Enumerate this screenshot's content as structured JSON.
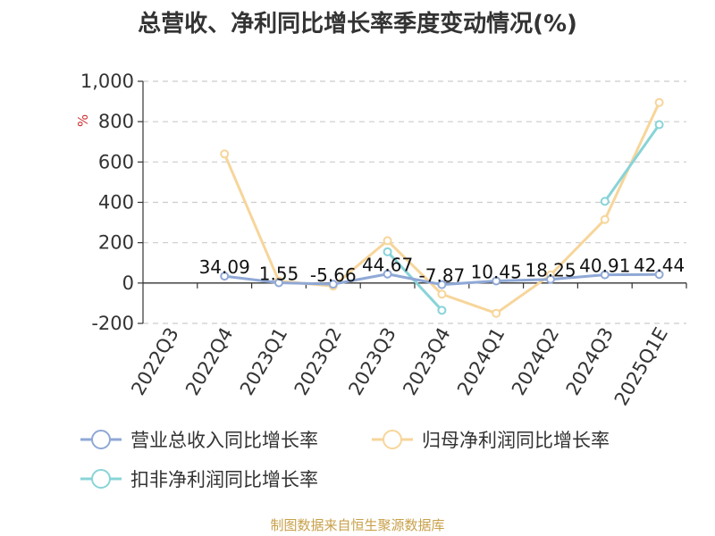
{
  "title": "总营收、净利同比增长率季度变动情况(%)",
  "footer": "制图数据来自恒生聚源数据库",
  "chart_data": {
    "type": "line",
    "title": "总营收、净利同比增长率季度变动情况(%)",
    "ylabel": "%",
    "ylim": [
      -200,
      1000
    ],
    "yticks": [
      -200,
      0,
      200,
      400,
      600,
      800,
      1000
    ],
    "ytick_labels": [
      "-200",
      "0",
      "200",
      "400",
      "600",
      "800",
      "1,000"
    ],
    "grid": true,
    "legend_position": "bottom",
    "categories": [
      "2022Q3",
      "2022Q4",
      "2023Q1",
      "2023Q2",
      "2023Q3",
      "2023Q4",
      "2024Q1",
      "2024Q2",
      "2024Q3",
      "2025Q1E"
    ],
    "series": [
      {
        "name": "营业总收入同比增长率",
        "color": "#8fa8d6",
        "values": [
          null,
          34.09,
          1.55,
          -5.66,
          44.67,
          -7.87,
          10.45,
          18.25,
          40.91,
          42.44
        ],
        "labels": [
          "",
          "34.09",
          "1.55",
          "-5.66",
          "44.67",
          "-7.87",
          "10.45",
          "18.25",
          "40.91",
          "42.44"
        ]
      },
      {
        "name": "归母净利润同比增长率",
        "color": "#f7d59a",
        "values": [
          null,
          640,
          10,
          -15,
          210,
          -55,
          -150,
          40,
          315,
          895
        ]
      },
      {
        "name": "扣非净利润同比增长率",
        "color": "#88d4d8",
        "values": [
          null,
          null,
          null,
          null,
          155,
          -135,
          null,
          null,
          405,
          785
        ]
      }
    ]
  }
}
